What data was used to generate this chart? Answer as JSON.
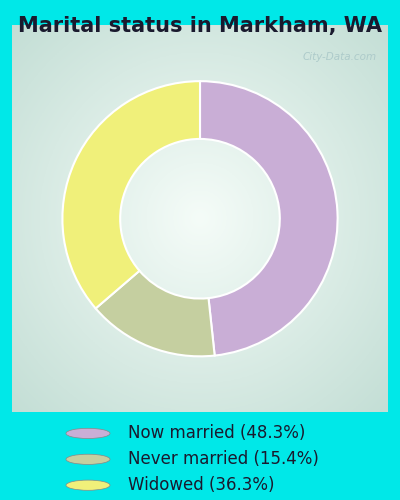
{
  "title": "Marital status in Markham, WA",
  "slices": [
    48.3,
    15.4,
    36.3
  ],
  "labels": [
    "Now married (48.3%)",
    "Never married (15.4%)",
    "Widowed (36.3%)"
  ],
  "colors": [
    "#c9aed6",
    "#c5cfa0",
    "#f0f07a"
  ],
  "legend_colors": [
    "#c9aed6",
    "#c5cfa0",
    "#f0f07a"
  ],
  "background_cyan": "#00e8e8",
  "title_fontsize": 15,
  "legend_fontsize": 12,
  "watermark": "City-Data.com"
}
